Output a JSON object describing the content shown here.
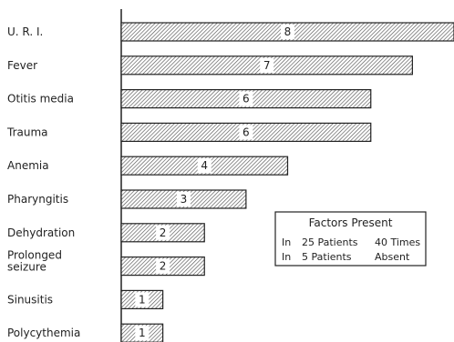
{
  "chart_data": {
    "type": "bar",
    "orientation": "horizontal",
    "categories": [
      "U. R. I.",
      "Fever",
      "Otitis media",
      "Trauma",
      "Anemia",
      "Pharyngitis",
      "Dehydration",
      [
        "Prolonged",
        "seizure"
      ],
      "Sinusitis",
      "Polycythemia"
    ],
    "values": [
      8,
      7,
      6,
      6,
      4,
      3,
      2,
      2,
      1,
      1
    ],
    "data_labels": [
      "8",
      "7",
      "6",
      "6",
      "4",
      "3",
      "2",
      "2",
      "1",
      "1"
    ],
    "xlim": [
      0,
      8
    ],
    "grid": false,
    "legend_box": {
      "title": "Factors Present",
      "lines": [
        [
          "In",
          "25 Patients",
          "40 Times"
        ],
        [
          "In",
          "5 Patients",
          "Absent"
        ]
      ]
    },
    "colors": {
      "bar_fill": "#ffffff",
      "hatch": "#555555",
      "stroke": "#222222"
    }
  }
}
